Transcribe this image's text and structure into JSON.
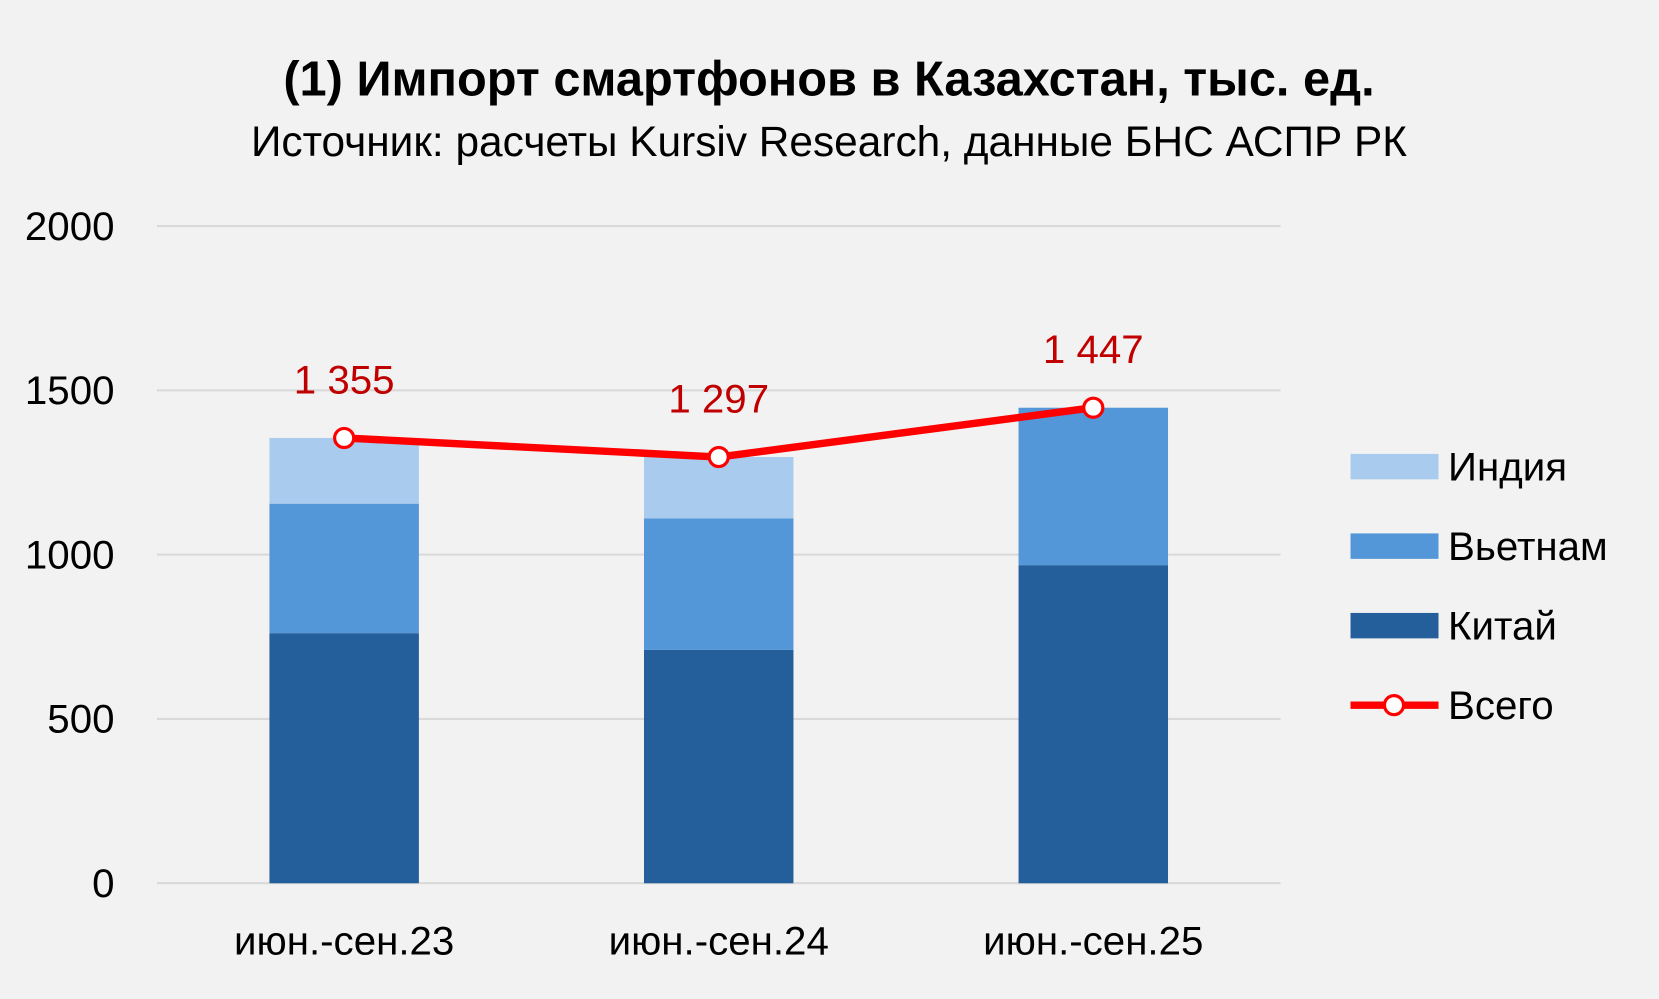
{
  "chart_data": {
    "type": "bar",
    "stacked": true,
    "title": "(1) Импорт смартфонов в Казахстан, тыс. ед.",
    "subtitle": "Источник: расчеты Kursiv Research, данные БНС АСПР РК",
    "categories": [
      "июн.-сен.23",
      "июн.-сен.24",
      "июн.-сен.25"
    ],
    "ylim": [
      0,
      2000
    ],
    "yticks": [
      0,
      500,
      1000,
      1500,
      2000
    ],
    "grid": true,
    "legend_position": "right",
    "series": [
      {
        "name": "Китай",
        "type": "bar",
        "values": [
          761,
          710,
          968
        ],
        "color": "#245f9c"
      },
      {
        "name": "Вьетнам",
        "type": "bar",
        "values": [
          394,
          400,
          479
        ],
        "color": "#5497d8"
      },
      {
        "name": "Индия",
        "type": "bar",
        "values": [
          200,
          187,
          0
        ],
        "color": "#a9cbee"
      },
      {
        "name": "Всего",
        "type": "line",
        "values": [
          1355,
          1297,
          1447
        ],
        "color": "#ff0000",
        "labels": [
          "1 355",
          "1 297",
          "1 447"
        ],
        "label_color": "#c00000"
      }
    ],
    "legend_order": [
      "Индия",
      "Вьетнам",
      "Китай",
      "Всего"
    ]
  }
}
